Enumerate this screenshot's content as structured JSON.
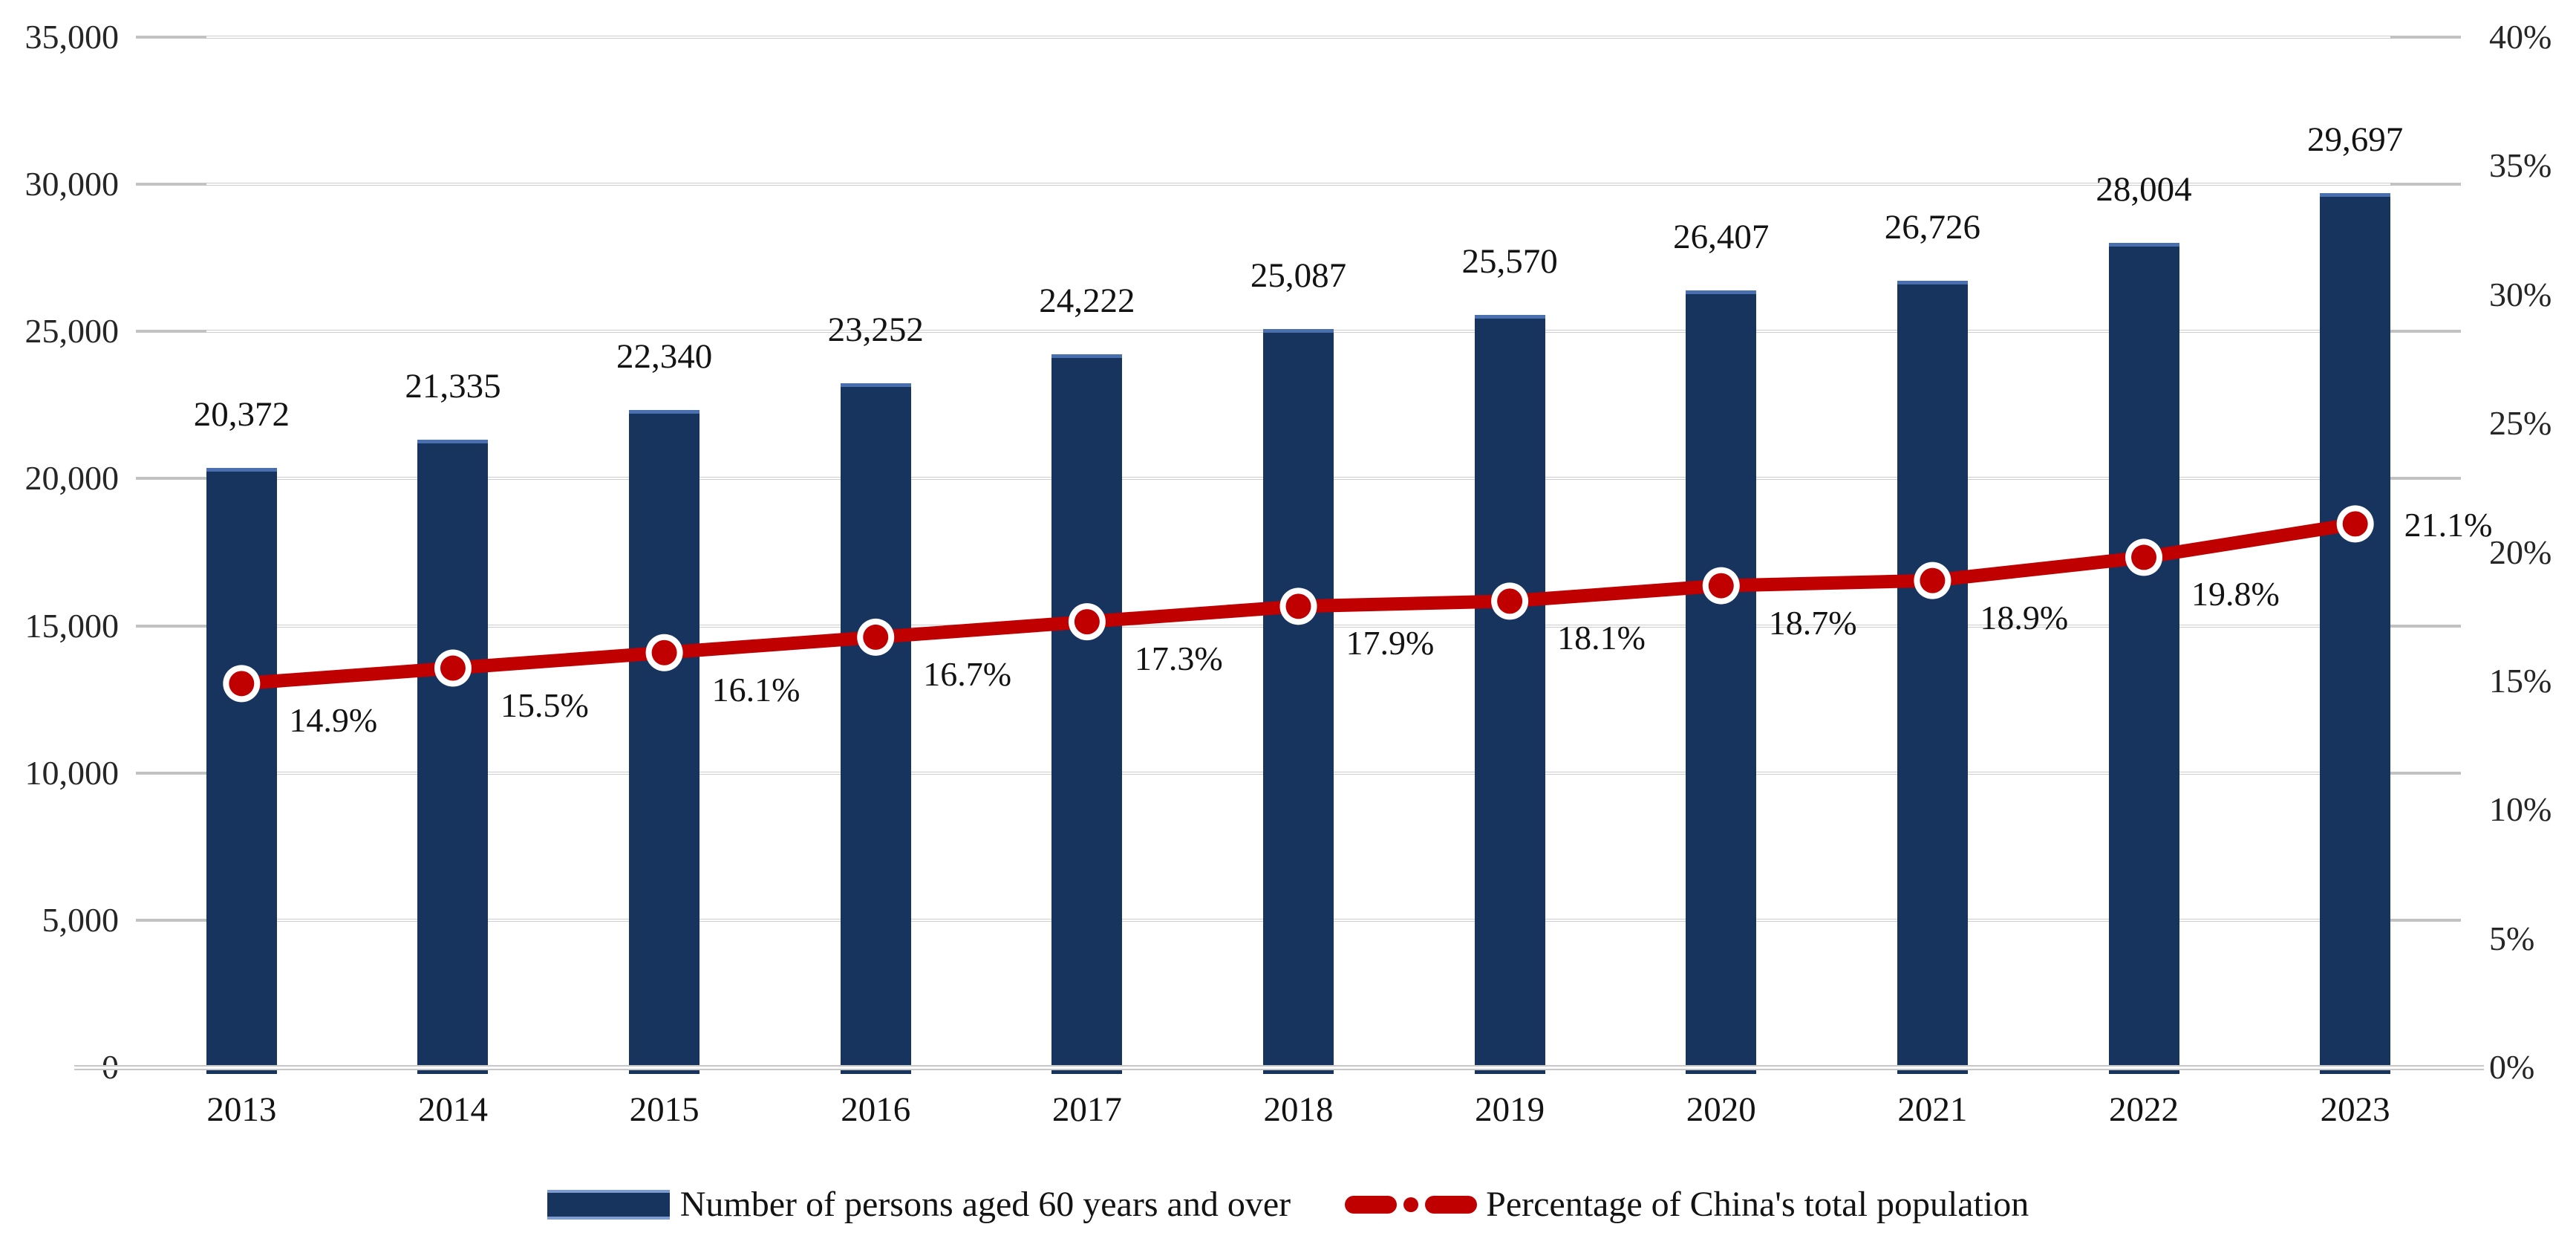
{
  "chart_data": {
    "type": "combo-bar-line",
    "title": "",
    "categories": [
      "2013",
      "2014",
      "2015",
      "2016",
      "2017",
      "2018",
      "2019",
      "2020",
      "2021",
      "2022",
      "2023"
    ],
    "series": [
      {
        "name": "Number of persons aged 60 years and over",
        "type": "bar",
        "axis": "left",
        "values": [
          20372,
          21335,
          22340,
          23252,
          24222,
          25087,
          25570,
          26407,
          26726,
          28004,
          29697
        ],
        "labels": [
          "20,372",
          "21,335",
          "22,340",
          "23,252",
          "24,222",
          "25,087",
          "25,570",
          "26,407",
          "26,726",
          "28,004",
          "29,697"
        ],
        "color": "#17345f"
      },
      {
        "name": "Percentage of China's total population",
        "type": "line",
        "axis": "right",
        "values": [
          14.9,
          15.5,
          16.1,
          16.7,
          17.3,
          17.9,
          18.1,
          18.7,
          18.9,
          19.8,
          21.1
        ],
        "labels": [
          "14.9%",
          "15.5%",
          "16.1%",
          "16.7%",
          "17.3%",
          "17.9%",
          "18.1%",
          "18.7%",
          "18.9%",
          "19.8%",
          "21.1%"
        ],
        "color": "#c00000"
      }
    ],
    "left_axis": {
      "min": 0,
      "max": 35000,
      "step": 5000,
      "tick_labels": [
        "0",
        "5,000",
        "10,000",
        "15,000",
        "20,000",
        "25,000",
        "30,000",
        "35,000"
      ]
    },
    "right_axis": {
      "min": 0,
      "max": 40,
      "step": 5,
      "tick_labels": [
        "0%",
        "5%",
        "10%",
        "15%",
        "20%",
        "25%",
        "30%",
        "35%",
        "40%"
      ]
    },
    "grid": true,
    "legend_position": "bottom"
  },
  "colors": {
    "bar_fill": "#17345f",
    "bar_edge": "#4a6fae",
    "line": "#c00000",
    "marker_fill": "#c00000",
    "marker_ring": "#ffffff",
    "gridline": "#cdcdcd",
    "text": "#131313"
  }
}
